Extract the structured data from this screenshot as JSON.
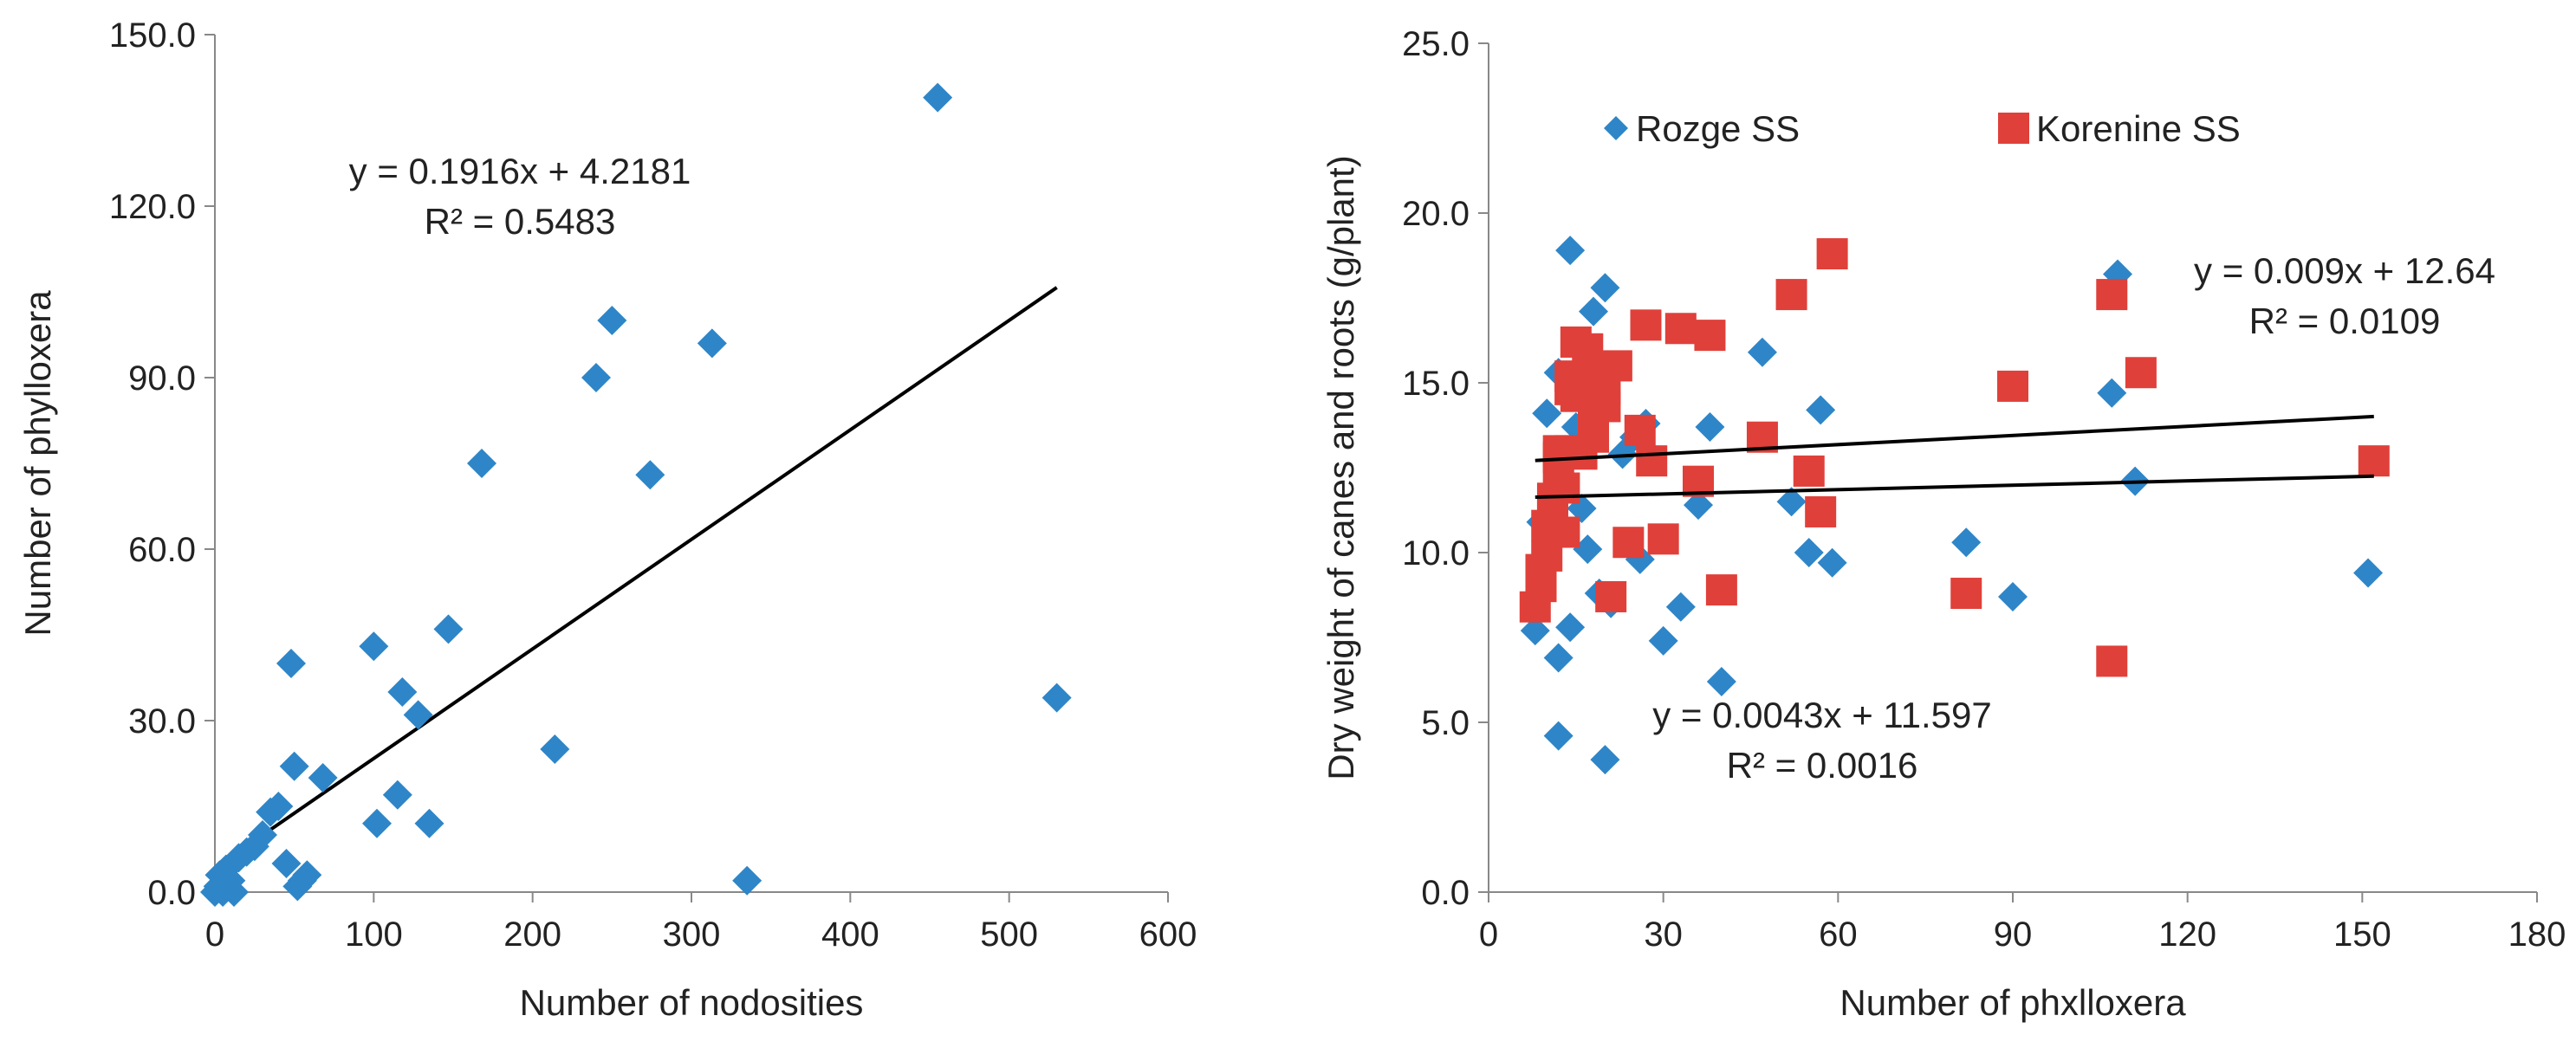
{
  "chart_data": [
    {
      "type": "scatter",
      "xlabel": "Number  of nodosities",
      "ylabel": "Number  of phylloxera",
      "xlim": [
        0,
        600
      ],
      "ylim": [
        0,
        150
      ],
      "x_ticks": [
        "0",
        "100",
        "200",
        "300",
        "400",
        "500",
        "600"
      ],
      "y_ticks": [
        "0.0",
        "30.0",
        "60.0",
        "90.0",
        "120.0",
        "150.0"
      ],
      "grid": false,
      "legend": "none",
      "marker_color": "#2E86C8",
      "series": [
        {
          "points": [
            [
              0,
              0
            ],
            [
              2,
              1
            ],
            [
              3,
              3
            ],
            [
              5,
              0
            ],
            [
              7,
              4
            ],
            [
              8,
              1
            ],
            [
              10,
              2
            ],
            [
              12,
              0
            ],
            [
              15,
              6
            ],
            [
              20,
              7
            ],
            [
              25,
              8
            ],
            [
              30,
              10
            ],
            [
              35,
              14
            ],
            [
              40,
              15
            ],
            [
              45,
              5
            ],
            [
              48,
              40
            ],
            [
              50,
              22
            ],
            [
              52,
              1
            ],
            [
              55,
              2
            ],
            [
              58,
              3
            ],
            [
              68,
              20
            ],
            [
              100,
              43
            ],
            [
              102,
              12
            ],
            [
              115,
              17
            ],
            [
              118,
              35
            ],
            [
              128,
              31
            ],
            [
              135,
              12
            ],
            [
              147,
              46
            ],
            [
              168,
              75
            ],
            [
              214,
              25
            ],
            [
              240,
              90
            ],
            [
              250,
              100
            ],
            [
              274,
              73
            ],
            [
              313,
              96
            ],
            [
              335,
              2
            ],
            [
              455,
              139
            ],
            [
              530,
              34
            ]
          ]
        }
      ],
      "trendlines": [
        {
          "slope": 0.1916,
          "intercept": 4.2181,
          "x_range": [
            0,
            530
          ],
          "color": "#000000"
        }
      ],
      "annotations": [
        {
          "lines": [
            "y = 0.1916x + 4.2181",
            "R² = 0.5483"
          ]
        }
      ]
    },
    {
      "type": "scatter",
      "xlabel": "Number  of phxlloxera",
      "ylabel": "Dry weight of canes and roots (g/plant)",
      "xlim": [
        0,
        180
      ],
      "ylim": [
        0,
        25
      ],
      "x_ticks": [
        "0",
        "30",
        "60",
        "90",
        "120",
        "150",
        "180"
      ],
      "y_ticks": [
        "0.0",
        "5.0",
        "10.0",
        "15.0",
        "20.0",
        "25.0"
      ],
      "grid": false,
      "legend": "top",
      "series": [
        {
          "name": "Rozge SS",
          "marker": "diamond",
          "color": "#2E86C8",
          "points": [
            [
              8,
              7.7
            ],
            [
              9,
              10.9
            ],
            [
              10,
              14.1
            ],
            [
              11,
              10.5
            ],
            [
              12,
              15.3
            ],
            [
              12,
              4.6
            ],
            [
              12,
              6.9
            ],
            [
              13,
              12.8
            ],
            [
              14,
              18.9
            ],
            [
              14,
              7.8
            ],
            [
              15,
              13.7
            ],
            [
              16,
              11.3
            ],
            [
              17,
              10.1
            ],
            [
              18,
              17.1
            ],
            [
              19,
              8.8
            ],
            [
              20,
              15.1
            ],
            [
              20,
              17.8
            ],
            [
              20,
              3.9
            ],
            [
              21,
              8.5
            ],
            [
              23,
              12.9
            ],
            [
              25,
              13.4
            ],
            [
              26,
              9.8
            ],
            [
              27,
              13.8
            ],
            [
              30,
              7.4
            ],
            [
              33,
              8.4
            ],
            [
              36,
              11.4
            ],
            [
              38,
              13.7
            ],
            [
              40,
              6.2
            ],
            [
              47,
              15.9
            ],
            [
              52,
              11.5
            ],
            [
              55,
              10.0
            ],
            [
              57,
              14.2
            ],
            [
              59,
              9.7
            ],
            [
              82,
              10.3
            ],
            [
              90,
              8.7
            ],
            [
              107,
              14.7
            ],
            [
              108,
              18.2
            ],
            [
              111,
              12.1
            ],
            [
              151,
              9.4
            ]
          ]
        },
        {
          "name": "Korenine SS",
          "marker": "square",
          "color": "#E0403A",
          "points": [
            [
              8,
              8.4
            ],
            [
              9,
              9.0
            ],
            [
              9,
              9.5
            ],
            [
              10,
              9.9
            ],
            [
              10,
              10.8
            ],
            [
              11,
              11.1
            ],
            [
              11,
              11.6
            ],
            [
              12,
              12.3
            ],
            [
              12,
              12.8
            ],
            [
              12,
              13.0
            ],
            [
              13,
              10.6
            ],
            [
              13,
              11.9
            ],
            [
              14,
              13.0
            ],
            [
              14,
              14.8
            ],
            [
              14,
              15.2
            ],
            [
              15,
              16.2
            ],
            [
              15,
              14.6
            ],
            [
              16,
              12.9
            ],
            [
              16,
              15.0
            ],
            [
              17,
              16.0
            ],
            [
              18,
              13.4
            ],
            [
              18,
              13.9
            ],
            [
              19,
              15.4
            ],
            [
              20,
              14.3
            ],
            [
              20,
              14.8
            ],
            [
              21,
              8.7
            ],
            [
              22,
              15.5
            ],
            [
              24,
              10.3
            ],
            [
              26,
              13.6
            ],
            [
              27,
              16.7
            ],
            [
              28,
              12.7
            ],
            [
              30,
              10.4
            ],
            [
              33,
              16.6
            ],
            [
              36,
              12.1
            ],
            [
              38,
              16.4
            ],
            [
              40,
              8.9
            ],
            [
              47,
              13.4
            ],
            [
              52,
              17.6
            ],
            [
              55,
              12.4
            ],
            [
              57,
              11.2
            ],
            [
              59,
              18.8
            ],
            [
              82,
              8.8
            ],
            [
              90,
              14.9
            ],
            [
              107,
              17.6
            ],
            [
              107,
              6.8
            ],
            [
              112,
              15.3
            ],
            [
              152,
              12.7
            ]
          ]
        }
      ],
      "trendlines": [
        {
          "slope": 0.009,
          "intercept": 12.64,
          "x_range": [
            8,
            152
          ],
          "color": "#000000"
        },
        {
          "slope": 0.0043,
          "intercept": 11.597,
          "x_range": [
            8,
            152
          ],
          "color": "#000000"
        }
      ],
      "annotations": [
        {
          "lines": [
            "y = 0.009x + 12.64",
            "R² = 0.0109"
          ]
        },
        {
          "lines": [
            "y = 0.0043x + 11.597",
            "R² = 0.0016"
          ]
        }
      ]
    }
  ]
}
